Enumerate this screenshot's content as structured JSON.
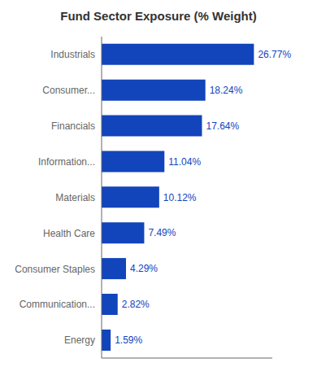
{
  "chart_data": {
    "type": "bar",
    "title": "Fund Sector Exposure (% Weight)",
    "orientation": "horizontal",
    "categories": [
      "Energy",
      "Communication...",
      "Consumer Staples",
      "Health Care",
      "Materials",
      "Information...",
      "Financials",
      "Consumer...",
      "Industrials"
    ],
    "values": [
      1.59,
      2.82,
      4.29,
      7.49,
      10.12,
      11.04,
      17.64,
      18.24,
      26.77
    ],
    "value_labels": [
      "1.59%",
      "2.82%",
      "4.29%",
      "7.49%",
      "10.12%",
      "11.04%",
      "17.64%",
      "18.24%",
      "26.77%"
    ],
    "data_labels": true,
    "color": "#1244bb",
    "xlim": [
      0,
      30
    ],
    "tick_labels": "y",
    "grid": false
  }
}
